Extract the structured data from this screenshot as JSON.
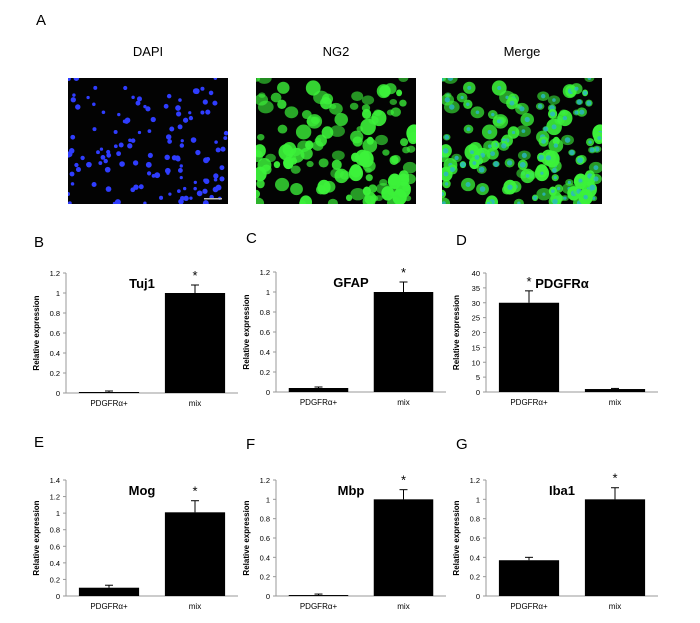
{
  "figure": {
    "panel_A": {
      "letter": "A",
      "images": [
        {
          "label": "DAPI",
          "stain": "dapi",
          "color": "#2f3dff"
        },
        {
          "label": "NG2",
          "stain": "ng2",
          "color": "#3cf23a"
        },
        {
          "label": "Merge",
          "stain": "merge",
          "color": "#3cf23a"
        }
      ]
    }
  },
  "chart_data": [
    {
      "letter": "B",
      "type": "bar",
      "title": "Tuj1",
      "ylabel": "Relative expression",
      "categories": [
        "PDGFRα+",
        "mix"
      ],
      "values": [
        0.01,
        1.0
      ],
      "errors": [
        0.01,
        0.08
      ],
      "ylim": [
        0,
        1.2
      ],
      "yticks": [
        "0",
        "0.2",
        "0.4",
        "0.6",
        "0.8",
        "1",
        "1.2"
      ],
      "significance": "*"
    },
    {
      "letter": "C",
      "type": "bar",
      "title": "GFAP",
      "ylabel": "Relative expression",
      "categories": [
        "PDGFRα+",
        "mix"
      ],
      "values": [
        0.04,
        1.0
      ],
      "errors": [
        0.01,
        0.1
      ],
      "ylim": [
        0,
        1.2
      ],
      "yticks": [
        "0",
        "0.2",
        "0.4",
        "0.6",
        "0.8",
        "1",
        "1.2"
      ],
      "significance": "*"
    },
    {
      "letter": "D",
      "type": "bar",
      "title": "PDGFRα",
      "ylabel": "Relative expression",
      "categories": [
        "PDGFRα+",
        "mix"
      ],
      "values": [
        30,
        1
      ],
      "errors": [
        4,
        0.2
      ],
      "ylim": [
        0,
        40
      ],
      "yticks": [
        "0",
        "5",
        "10",
        "15",
        "20",
        "25",
        "30",
        "35",
        "40"
      ],
      "significance": "*"
    },
    {
      "letter": "E",
      "type": "bar",
      "title": "Mog",
      "ylabel": "Relative expression",
      "categories": [
        "PDGFRα+",
        "mix"
      ],
      "values": [
        0.1,
        1.01
      ],
      "errors": [
        0.03,
        0.14
      ],
      "ylim": [
        0,
        1.4
      ],
      "yticks": [
        "0",
        "0.2",
        "0.4",
        "0.6",
        "0.8",
        "1",
        "1.2",
        "1.4"
      ],
      "significance": "*"
    },
    {
      "letter": "F",
      "type": "bar",
      "title": "Mbp",
      "ylabel": "Relative expression",
      "categories": [
        "PDGFRα+",
        "mix"
      ],
      "values": [
        0.01,
        1.0
      ],
      "errors": [
        0.01,
        0.1
      ],
      "ylim": [
        0,
        1.2
      ],
      "yticks": [
        "0",
        "0.2",
        "0.4",
        "0.6",
        "0.8",
        "1",
        "1.2"
      ],
      "significance": "*"
    },
    {
      "letter": "G",
      "type": "bar",
      "title": "Iba1",
      "ylabel": "Relative expression",
      "categories": [
        "PDGFRα+",
        "mix"
      ],
      "values": [
        0.37,
        1.0
      ],
      "errors": [
        0.03,
        0.12
      ],
      "ylim": [
        0,
        1.2
      ],
      "yticks": [
        "0",
        "0.2",
        "0.4",
        "0.6",
        "0.8",
        "1",
        "1.2"
      ],
      "significance": "*"
    }
  ]
}
